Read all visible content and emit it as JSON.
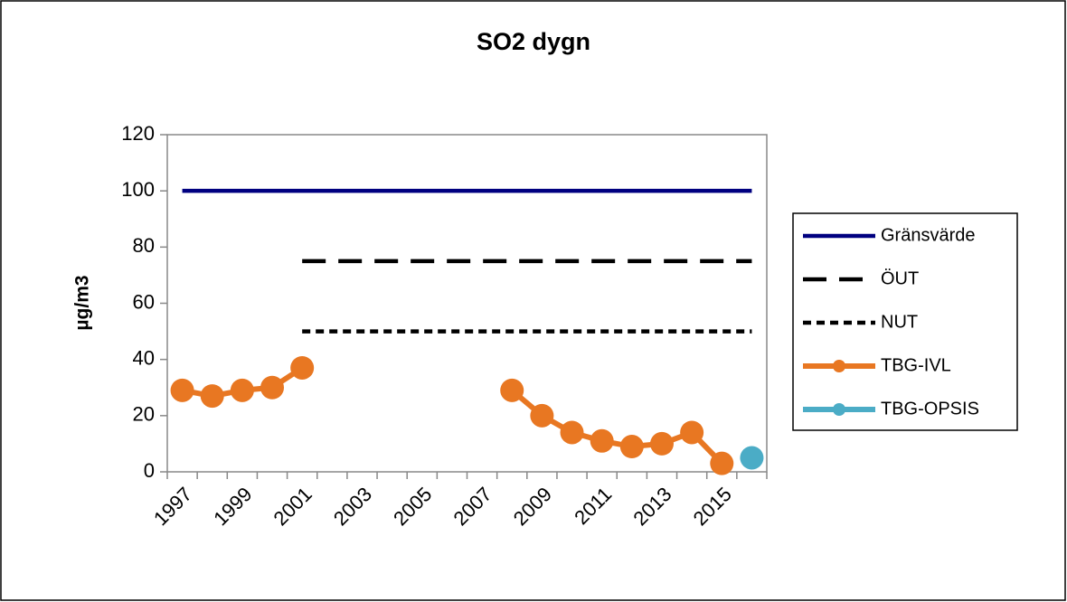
{
  "chart_data": {
    "type": "line",
    "title": "SO2 dygn",
    "y_label": "µg/m3",
    "categories": [
      "1997",
      null,
      "1999",
      null,
      "2001",
      null,
      "2003",
      null,
      "2005",
      null,
      "2007",
      null,
      "2009",
      null,
      "2011",
      null,
      "2013",
      null,
      "2015",
      null
    ],
    "series": [
      {
        "name": "Gränsvärde",
        "color": "#000080",
        "dash": "solid",
        "marker": false,
        "values": [
          100,
          100,
          100,
          100,
          100,
          100,
          100,
          100,
          100,
          100,
          100,
          100,
          100,
          100,
          100,
          100,
          100,
          100,
          100,
          100
        ]
      },
      {
        "name": "ÖUT",
        "color": "#000000",
        "dash": "dashed",
        "marker": false,
        "values": [
          null,
          null,
          null,
          null,
          75,
          75,
          75,
          75,
          75,
          75,
          75,
          75,
          75,
          75,
          75,
          75,
          75,
          75,
          75,
          75
        ]
      },
      {
        "name": "NUT",
        "color": "#000000",
        "dash": "dotted",
        "marker": false,
        "values": [
          null,
          null,
          null,
          null,
          50,
          50,
          50,
          50,
          50,
          50,
          50,
          50,
          50,
          50,
          50,
          50,
          50,
          50,
          50,
          50
        ]
      },
      {
        "name": "TBG-IVL",
        "color": "#E87722",
        "dash": "solid",
        "marker": true,
        "values": [
          29,
          27,
          29,
          30,
          37,
          null,
          null,
          null,
          null,
          null,
          null,
          29,
          20,
          14,
          11,
          9,
          10,
          14,
          3,
          null
        ]
      },
      {
        "name": "TBG-OPSIS",
        "color": "#4BACC6",
        "dash": "solid",
        "marker": true,
        "values": [
          null,
          null,
          null,
          null,
          null,
          null,
          null,
          null,
          null,
          null,
          null,
          null,
          null,
          null,
          null,
          null,
          null,
          null,
          null,
          5
        ]
      }
    ],
    "ylim": [
      0,
      120
    ],
    "yticks": [
      0,
      20,
      40,
      60,
      80,
      100,
      120
    ],
    "legend": "right"
  }
}
